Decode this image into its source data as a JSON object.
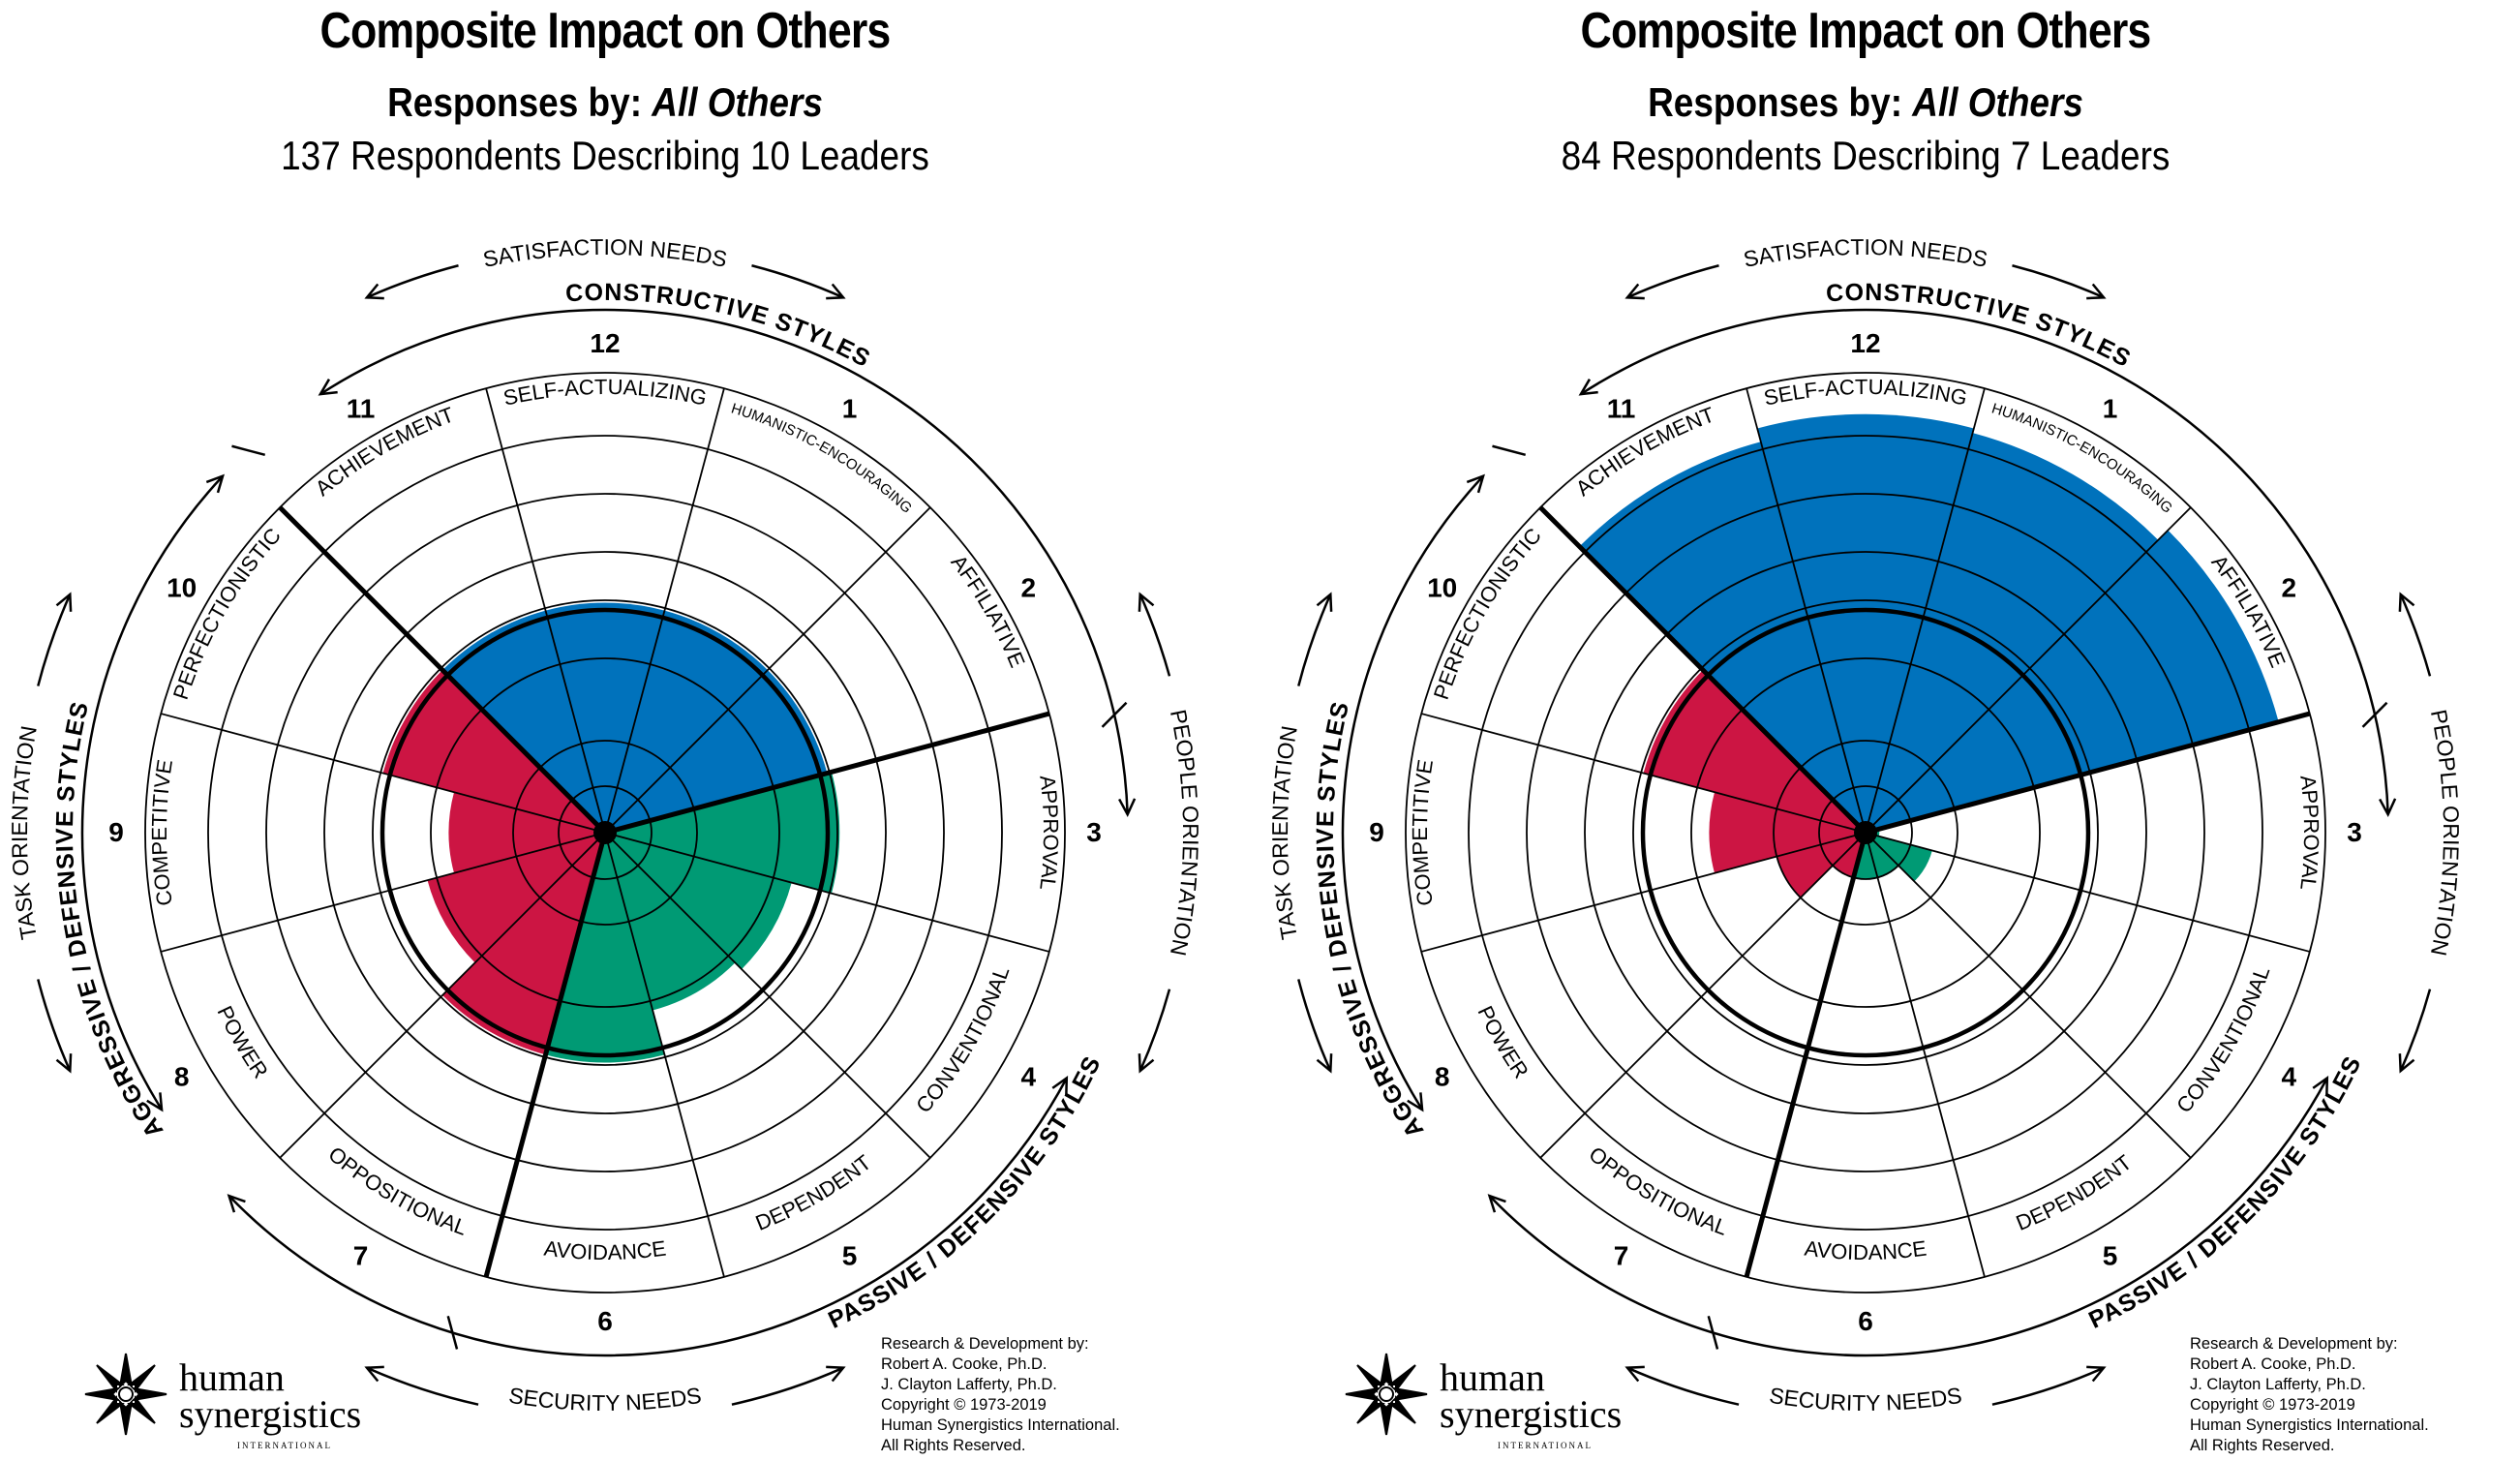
{
  "colors": {
    "constructive": "#0072bc",
    "passive_defensive": "#009a74",
    "aggressive_defensive": "#cc1543"
  },
  "labels": {
    "satisfaction_needs": "SATISFACTION NEEDS",
    "security_needs": "SECURITY NEEDS",
    "people_orientation": "PEOPLE ORIENTATION",
    "task_orientation": "TASK ORIENTATION",
    "constructive_styles": "CONSTRUCTIVE STYLES",
    "passive_defensive_styles": "PASSIVE / DEFENSIVE STYLES",
    "aggressive_defensive_styles": "AGGRESSIVE / DEFENSIVE STYLES"
  },
  "styles": [
    {
      "number": "1",
      "name": "HUMANISTIC-ENCOURAGING"
    },
    {
      "number": "2",
      "name": "AFFILIATIVE"
    },
    {
      "number": "3",
      "name": "APPROVAL"
    },
    {
      "number": "4",
      "name": "CONVENTIONAL"
    },
    {
      "number": "5",
      "name": "DEPENDENT"
    },
    {
      "number": "6",
      "name": "AVOIDANCE"
    },
    {
      "number": "7",
      "name": "OPPOSITIONAL"
    },
    {
      "number": "8",
      "name": "POWER"
    },
    {
      "number": "9",
      "name": "COMPETITIVE"
    },
    {
      "number": "10",
      "name": "PERFECTIONISTIC"
    },
    {
      "number": "11",
      "name": "ACHIEVEMENT"
    },
    {
      "number": "12",
      "name": "SELF-ACTUALIZING"
    }
  ],
  "credits": {
    "line1": "Research & Development by:",
    "line2": "Robert A. Cooke, Ph.D.",
    "line3": "J. Clayton Lafferty, Ph.D.",
    "line4": "Copyright © 1973-2019",
    "line5": "Human Synergistics International.",
    "line6": "All Rights Reserved."
  },
  "logo": {
    "line1": "human",
    "line2": "synergistics",
    "line3": "INTERNATIONAL"
  },
  "panels": [
    {
      "title": "Composite Impact on Others",
      "responses_label": "Responses by:",
      "responses_group": "All Others",
      "respondents_line": "137 Respondents Describing 10 Leaders"
    },
    {
      "title": "Composite Impact on Others",
      "responses_label": "Responses by:",
      "responses_group": "All Others",
      "respondents_line": "84 Respondents Describing 7 Leaders"
    }
  ],
  "chart_data": [
    {
      "type": "circumplex",
      "categories": [
        "1",
        "2",
        "3",
        "4",
        "5",
        "6",
        "7",
        "8",
        "9",
        "10",
        "11",
        "12"
      ],
      "values": [
        50,
        50,
        51,
        42,
        40,
        50,
        50,
        40,
        34,
        50,
        50,
        50
      ],
      "title": "Composite Impact on Others",
      "rlim": [
        0,
        100
      ]
    },
    {
      "type": "circumplex",
      "categories": [
        "1",
        "2",
        "3",
        "4",
        "5",
        "6",
        "7",
        "8",
        "9",
        "10",
        "11",
        "12"
      ],
      "values": [
        90,
        93,
        3,
        15,
        10,
        10,
        10,
        20,
        34,
        50,
        88,
        91
      ],
      "title": "Composite Impact on Others",
      "rlim": [
        0,
        100
      ]
    }
  ]
}
